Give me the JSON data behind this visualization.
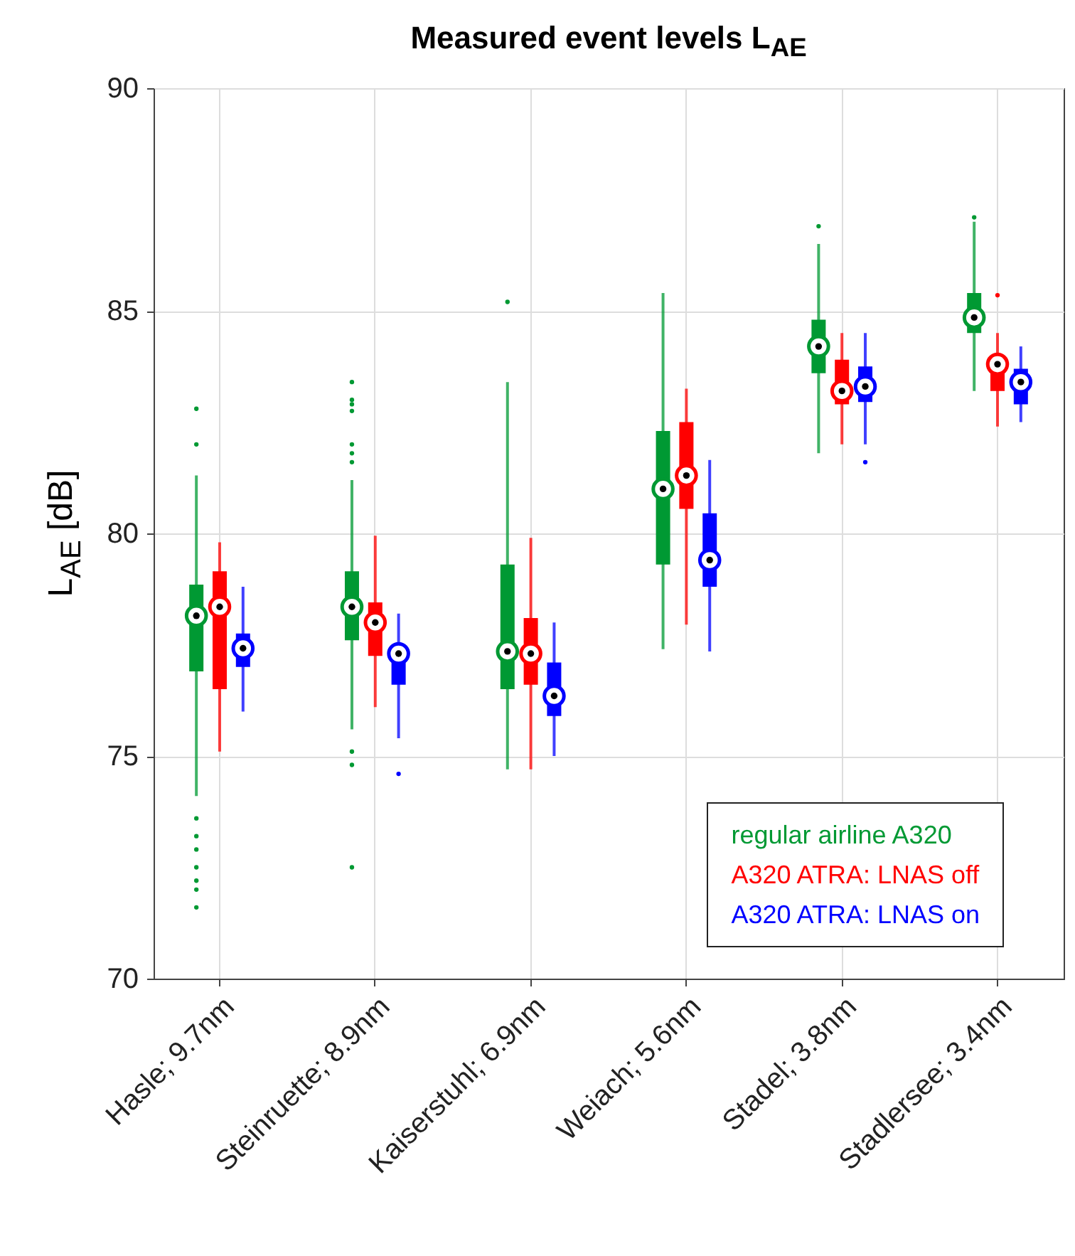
{
  "chart_data": {
    "type": "box",
    "title": "Measured event levels L$_{AE}$",
    "ylabel": "L$_{AE}$ [dB]",
    "categories": [
      "Hasle; 9.7nm",
      "Steinruette; 8.9nm",
      "Kaiserstuhl; 6.9nm",
      "Weiach; 5.6nm",
      "Stadel; 3.8nm",
      "Stadlersee; 3.4nm"
    ],
    "ylim": [
      70,
      90
    ],
    "yticks": [
      70,
      75,
      80,
      85,
      90
    ],
    "grid": true,
    "legend": "bottom right",
    "marker": "circle",
    "series": [
      {
        "name": "regular airline A320",
        "color": "#009933",
        "boxes": [
          {
            "low": 74.1,
            "q1": 76.9,
            "median": 78.15,
            "q3": 78.85,
            "high": 81.3,
            "outliers": [
              82.8,
              82.0,
              73.6,
              73.2,
              72.9,
              72.5,
              72.2,
              72.0,
              71.6
            ]
          },
          {
            "low": 75.6,
            "q1": 77.6,
            "median": 78.35,
            "q3": 79.15,
            "high": 81.2,
            "outliers": [
              83.4,
              83.0,
              82.9,
              82.75,
              82.0,
              81.8,
              81.6,
              75.1,
              74.8,
              72.5
            ]
          },
          {
            "low": 74.7,
            "q1": 76.5,
            "median": 77.35,
            "q3": 79.3,
            "high": 83.4,
            "outliers": [
              85.2
            ]
          },
          {
            "low": 77.4,
            "q1": 79.3,
            "median": 81.0,
            "q3": 82.3,
            "high": 85.4
          },
          {
            "low": 81.8,
            "q1": 83.6,
            "median": 84.2,
            "q3": 84.8,
            "high": 86.5,
            "outliers": [
              86.9
            ]
          },
          {
            "low": 83.2,
            "q1": 84.5,
            "median": 84.85,
            "q3": 85.4,
            "high": 87.0,
            "outliers": [
              87.1
            ]
          }
        ]
      },
      {
        "name": "A320 ATRA: LNAS off",
        "color": "#ff0000",
        "boxes": [
          {
            "low": 75.1,
            "q1": 76.5,
            "median": 78.35,
            "q3": 79.15,
            "high": 79.8
          },
          {
            "low": 76.1,
            "q1": 77.25,
            "median": 78.0,
            "q3": 78.45,
            "high": 79.95
          },
          {
            "low": 74.7,
            "q1": 76.6,
            "median": 77.3,
            "q3": 78.1,
            "high": 79.9
          },
          {
            "low": 77.95,
            "q1": 80.55,
            "median": 81.3,
            "q3": 82.5,
            "high": 83.25
          },
          {
            "low": 82.0,
            "q1": 82.9,
            "median": 83.2,
            "q3": 83.9,
            "high": 84.5
          },
          {
            "low": 82.4,
            "q1": 83.2,
            "median": 83.8,
            "q3": 84.0,
            "high": 84.5,
            "outliers": [
              85.35
            ]
          }
        ]
      },
      {
        "name": "A320 ATRA: LNAS on",
        "color": "#0000ff",
        "boxes": [
          {
            "low": 76.0,
            "q1": 77.0,
            "median": 77.42,
            "q3": 77.75,
            "high": 78.8
          },
          {
            "low": 75.4,
            "q1": 76.6,
            "median": 77.3,
            "q3": 77.5,
            "high": 78.2,
            "outliers": [
              74.6
            ]
          },
          {
            "low": 75.0,
            "q1": 75.9,
            "median": 76.35,
            "q3": 77.1,
            "high": 78.0
          },
          {
            "low": 77.35,
            "q1": 78.8,
            "median": 79.4,
            "q3": 80.45,
            "high": 81.65
          },
          {
            "low": 82.0,
            "q1": 82.95,
            "median": 83.3,
            "q3": 83.75,
            "high": 84.5,
            "outliers": [
              81.6
            ]
          },
          {
            "low": 82.5,
            "q1": 82.9,
            "median": 83.4,
            "q3": 83.7,
            "high": 84.2
          }
        ]
      }
    ]
  }
}
